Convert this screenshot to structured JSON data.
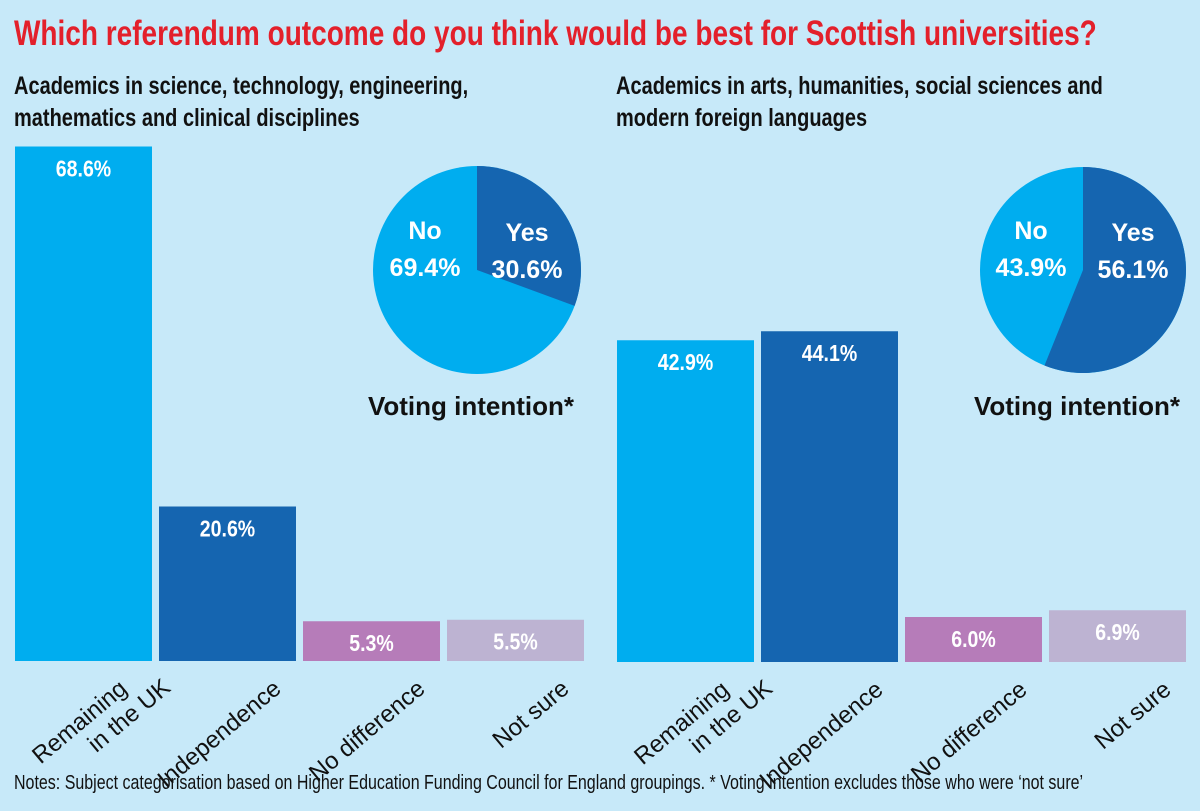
{
  "title": "Which referendum outcome do you think would be best for Scottish universities?",
  "notes": "Notes: Subject categorisation based on Higher Education Funding Council for England groupings. * Voting intention excludes those who were ‘not sure’",
  "colors": {
    "remaining": "#00adef",
    "independence": "#1565b0",
    "no_difference": "#b67cb9",
    "not_sure": "#bdb3d2",
    "yes": "#1565b0",
    "no": "#00adef",
    "title": "#e3202b"
  },
  "chart_data": [
    {
      "type": "bar",
      "title": "Academics in science, technology, engineering, mathematics and clinical disciplines",
      "title_lines": [
        "Academics in science, technology, engineering,",
        "mathematics and clinical disciplines"
      ],
      "categories": [
        [
          "Remaining",
          "in the UK"
        ],
        [
          "Independence"
        ],
        [
          "No difference"
        ],
        [
          "Not sure"
        ]
      ],
      "values": [
        68.6,
        20.6,
        5.3,
        5.5
      ],
      "labels": [
        "68.6%",
        "20.6%",
        "5.3%",
        "5.5%"
      ],
      "unit": "%",
      "pie": {
        "type": "pie",
        "title": "Voting intention*",
        "slices": [
          {
            "name": "Yes",
            "value": 30.6,
            "label": "30.6%"
          },
          {
            "name": "No",
            "value": 69.4,
            "label": "69.4%"
          }
        ]
      }
    },
    {
      "type": "bar",
      "title": "Academics in arts, humanities, social sciences and modern foreign languages",
      "title_lines": [
        "Academics in arts, humanities, social sciences and",
        "modern foreign languages"
      ],
      "categories": [
        [
          "Remaining",
          "in the UK"
        ],
        [
          "Independence"
        ],
        [
          "No difference"
        ],
        [
          "Not sure"
        ]
      ],
      "values": [
        42.9,
        44.1,
        6.0,
        6.9
      ],
      "labels": [
        "42.9%",
        "44.1%",
        "6.0%",
        "6.9%"
      ],
      "unit": "%",
      "pie": {
        "type": "pie",
        "title": "Voting intention*",
        "slices": [
          {
            "name": "Yes",
            "value": 56.1,
            "label": "56.1%"
          },
          {
            "name": "No",
            "value": 43.9,
            "label": "43.9%"
          }
        ]
      }
    }
  ]
}
